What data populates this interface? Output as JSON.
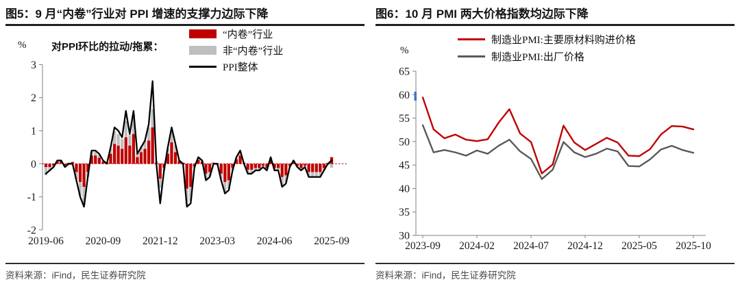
{
  "colors": {
    "accent_red": "#c00000",
    "bar_gray": "#bfbfbf",
    "ppi_line_black": "#000000",
    "pmi_gray_line": "#595959",
    "axis_gray": "#808080",
    "title_text": "#141414",
    "source_text": "#4a4a4a",
    "artifact_blue": "#4472c4"
  },
  "chart_data": [
    {
      "id": "fig5",
      "type": "bar",
      "subtype": "stacked-bars-with-line",
      "title": "图5：9 月“内卷”行业对 PPI 增速的支撑力边际下降",
      "unit": "%",
      "annotation": "对PPI环比的拉动/拖累：",
      "source": "资料来源：iFind，民生证券研究院",
      "ylim": [
        -2,
        3
      ],
      "yticks": [
        3,
        2,
        1,
        0,
        -1,
        -2
      ],
      "grid": false,
      "legend_position": "top-right",
      "x_tick_labels": [
        "2019-06",
        "2020-09",
        "2021-12",
        "2023-03",
        "2024-06",
        "2025-09"
      ],
      "x_tick_indices": [
        0,
        15,
        30,
        45,
        60,
        75
      ],
      "x": [
        "2019-06",
        "2019-07",
        "2019-08",
        "2019-09",
        "2019-10",
        "2019-11",
        "2019-12",
        "2020-01",
        "2020-02",
        "2020-03",
        "2020-04",
        "2020-05",
        "2020-06",
        "2020-07",
        "2020-08",
        "2020-09",
        "2020-10",
        "2020-11",
        "2020-12",
        "2021-01",
        "2021-02",
        "2021-03",
        "2021-04",
        "2021-05",
        "2021-06",
        "2021-07",
        "2021-08",
        "2021-09",
        "2021-10",
        "2021-11",
        "2021-12",
        "2022-01",
        "2022-02",
        "2022-03",
        "2022-04",
        "2022-05",
        "2022-06",
        "2022-07",
        "2022-08",
        "2022-09",
        "2022-10",
        "2022-11",
        "2022-12",
        "2023-01",
        "2023-02",
        "2023-03",
        "2023-04",
        "2023-05",
        "2023-06",
        "2023-07",
        "2023-08",
        "2023-09",
        "2023-10",
        "2023-11",
        "2023-12",
        "2024-01",
        "2024-02",
        "2024-03",
        "2024-04",
        "2024-05",
        "2024-06",
        "2024-07",
        "2024-08",
        "2024-09",
        "2024-10",
        "2024-11",
        "2024-12",
        "2025-01",
        "2025-02",
        "2025-03",
        "2025-04",
        "2025-05",
        "2025-06",
        "2025-07",
        "2025-08",
        "2025-09"
      ],
      "series": [
        {
          "name": "“内卷”行业",
          "type": "bar",
          "color": "#c00000",
          "values": [
            -0.1,
            -0.1,
            -0.05,
            0.06,
            0.08,
            -0.05,
            0.03,
            0.05,
            -0.25,
            -0.55,
            -0.7,
            -0.25,
            0.25,
            0.25,
            0.18,
            0.06,
            0.03,
            0.3,
            0.6,
            0.55,
            0.45,
            0.8,
            0.55,
            0.9,
            0.2,
            0.35,
            0.45,
            0.7,
            1.1,
            0.02,
            -0.45,
            -0.12,
            0.3,
            0.65,
            0.35,
            0.08,
            0.03,
            -0.75,
            -0.7,
            -0.08,
            0.12,
            0.06,
            -0.3,
            -0.25,
            0.02,
            0.02,
            -0.3,
            -0.55,
            -0.5,
            -0.12,
            0.13,
            0.25,
            0.03,
            -0.18,
            -0.18,
            -0.13,
            -0.13,
            -0.06,
            -0.13,
            0.1,
            -0.13,
            -0.13,
            -0.4,
            -0.35,
            -0.06,
            0.04,
            -0.06,
            -0.13,
            -0.06,
            -0.25,
            -0.25,
            -0.25,
            -0.25,
            -0.13,
            0.02,
            0.2
          ]
        },
        {
          "name": "非“内卷”行业",
          "type": "bar",
          "color": "#bfbfbf",
          "values": [
            -0.25,
            -0.12,
            -0.05,
            0.03,
            0.02,
            -0.04,
            -0.03,
            0.02,
            -0.22,
            -0.42,
            -0.55,
            -0.15,
            0.12,
            0.12,
            0.1,
            0.03,
            0.01,
            0.16,
            0.38,
            0.35,
            0.3,
            0.5,
            0.32,
            0.6,
            0.12,
            0.18,
            0.24,
            0.4,
            0.55,
            0.06,
            -0.28,
            -0.08,
            0.16,
            0.38,
            0.2,
            0.04,
            -0.03,
            -0.48,
            -0.42,
            -0.04,
            0.06,
            0.04,
            -0.16,
            -0.13,
            0.03,
            -0.04,
            -0.16,
            -0.3,
            -0.26,
            -0.07,
            0.06,
            0.13,
            0.01,
            -0.09,
            -0.09,
            -0.06,
            -0.06,
            -0.04,
            -0.06,
            0.08,
            -0.06,
            -0.06,
            -0.26,
            -0.22,
            -0.04,
            0.05,
            -0.04,
            -0.06,
            -0.04,
            -0.13,
            -0.13,
            -0.13,
            -0.13,
            -0.07,
            -0.05,
            -0.12
          ]
        },
        {
          "name": "PPI整体",
          "type": "line",
          "color": "#000000",
          "values": [
            -0.3,
            -0.2,
            -0.1,
            0.1,
            0.1,
            -0.1,
            0.0,
            0.0,
            -0.5,
            -1.0,
            -1.3,
            -0.4,
            0.4,
            0.4,
            0.3,
            0.1,
            0.0,
            0.5,
            1.1,
            1.0,
            0.8,
            1.6,
            0.9,
            1.6,
            0.3,
            0.5,
            0.7,
            1.2,
            2.5,
            0.0,
            -1.2,
            -0.2,
            0.5,
            1.1,
            0.6,
            0.1,
            0.0,
            -1.3,
            -1.2,
            -0.1,
            0.2,
            0.1,
            -0.5,
            -0.4,
            0.0,
            0.0,
            -0.5,
            -0.9,
            -0.8,
            -0.2,
            0.2,
            0.4,
            0.0,
            -0.3,
            -0.3,
            -0.2,
            -0.2,
            -0.1,
            -0.2,
            0.2,
            -0.2,
            -0.2,
            -0.7,
            -0.6,
            -0.1,
            0.1,
            -0.1,
            -0.2,
            -0.1,
            -0.4,
            -0.4,
            -0.4,
            -0.4,
            -0.2,
            0.0,
            0.1
          ]
        }
      ]
    },
    {
      "id": "fig6",
      "type": "line",
      "title": "图6：10 月 PMI 两大价格指数均边际下降",
      "unit": "%",
      "source": "资料来源：iFind，民生证券研究院",
      "ylim": [
        30,
        65
      ],
      "yticks": [
        65,
        60,
        55,
        50,
        45,
        40,
        35,
        30
      ],
      "grid": false,
      "legend_position": "top",
      "x_tick_labels": [
        "2023-09",
        "2024-02",
        "2024-07",
        "2024-12",
        "2025-05",
        "2025-10"
      ],
      "x_tick_indices": [
        0,
        5,
        10,
        15,
        20,
        25
      ],
      "x": [
        "2023-09",
        "2023-10",
        "2023-11",
        "2023-12",
        "2024-01",
        "2024-02",
        "2024-03",
        "2024-04",
        "2024-05",
        "2024-06",
        "2024-07",
        "2024-08",
        "2024-09",
        "2024-10",
        "2024-11",
        "2024-12",
        "2025-01",
        "2025-02",
        "2025-03",
        "2025-04",
        "2025-05",
        "2025-06",
        "2025-07",
        "2025-08",
        "2025-09",
        "2025-10"
      ],
      "series": [
        {
          "name": "制造业PMI:主要原材料购进价格",
          "type": "line",
          "color": "#c00000",
          "values": [
            59.4,
            52.6,
            50.7,
            51.5,
            50.4,
            50.1,
            50.5,
            54.0,
            56.9,
            51.7,
            49.9,
            43.2,
            45.1,
            53.4,
            49.8,
            48.2,
            49.5,
            50.8,
            49.8,
            47.0,
            46.9,
            48.4,
            51.5,
            53.3,
            53.2,
            52.6
          ]
        },
        {
          "name": "制造业PMI:出厂价格",
          "type": "line",
          "color": "#595959",
          "values": [
            53.5,
            47.7,
            48.2,
            47.7,
            47.0,
            48.1,
            47.4,
            49.1,
            50.4,
            47.9,
            46.3,
            42.0,
            44.0,
            49.9,
            47.7,
            46.7,
            47.4,
            48.5,
            47.9,
            44.8,
            44.7,
            46.2,
            48.3,
            49.1,
            48.2,
            47.6
          ]
        }
      ]
    }
  ]
}
